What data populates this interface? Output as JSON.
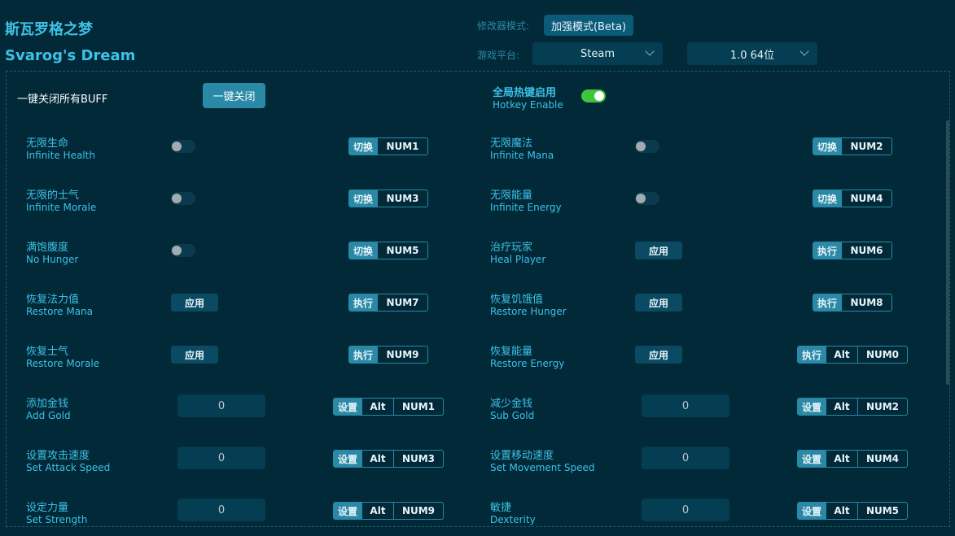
{
  "title_cn": "斯瓦罗格之梦",
  "title_en": "Svarog's Dream",
  "mode": {
    "label": "修改器模式:",
    "value": "加强模式(Beta)"
  },
  "platform": {
    "label": "游戏平台:",
    "value": "Steam",
    "version": "1.0 64位"
  },
  "close_all": {
    "label": "一键关闭所有BUFF",
    "button": "一键关闭"
  },
  "hotkey_enable": {
    "cn": "全局热键启用",
    "en": "Hotkey Enable",
    "on": true
  },
  "colors": {
    "bg": "#012938",
    "accent": "#3ec1e6",
    "button": "#2a89a6",
    "toggle_on": "#3fc43f"
  },
  "items": [
    {
      "cn": "无限生命",
      "en": "Infinite Health",
      "type": "toggle",
      "on": false,
      "action": "切换",
      "keys": [
        "NUM1"
      ]
    },
    {
      "cn": "无限魔法",
      "en": "Infinite Mana",
      "type": "toggle",
      "on": false,
      "action": "切换",
      "keys": [
        "NUM2"
      ]
    },
    {
      "cn": "无限的士气",
      "en": "Infinite Morale",
      "type": "toggle",
      "on": false,
      "action": "切换",
      "keys": [
        "NUM3"
      ]
    },
    {
      "cn": "无限能量",
      "en": "Infinite Energy",
      "type": "toggle",
      "on": false,
      "action": "切换",
      "keys": [
        "NUM4"
      ]
    },
    {
      "cn": "满饱腹度",
      "en": "No Hunger",
      "type": "toggle",
      "on": false,
      "action": "切换",
      "keys": [
        "NUM5"
      ]
    },
    {
      "cn": "治疗玩家",
      "en": "Heal Player",
      "type": "apply",
      "button": "应用",
      "action": "执行",
      "keys": [
        "NUM6"
      ]
    },
    {
      "cn": "恢复法力值",
      "en": "Restore Mana",
      "type": "apply",
      "button": "应用",
      "action": "执行",
      "keys": [
        "NUM7"
      ]
    },
    {
      "cn": "恢复饥饿值",
      "en": "Restore Hunger",
      "type": "apply",
      "button": "应用",
      "action": "执行",
      "keys": [
        "NUM8"
      ]
    },
    {
      "cn": "恢复士气",
      "en": "Restore Morale",
      "type": "apply",
      "button": "应用",
      "action": "执行",
      "keys": [
        "NUM9"
      ]
    },
    {
      "cn": "恢复能量",
      "en": "Restore Energy",
      "type": "apply",
      "button": "应用",
      "action": "执行",
      "keys": [
        "Alt",
        "NUM0"
      ]
    },
    {
      "cn": "添加金钱",
      "en": "Add Gold",
      "type": "input",
      "value": "0",
      "action": "设置",
      "keys": [
        "Alt",
        "NUM1"
      ]
    },
    {
      "cn": "减少金钱",
      "en": "Sub Gold",
      "type": "input",
      "value": "0",
      "action": "设置",
      "keys": [
        "Alt",
        "NUM2"
      ]
    },
    {
      "cn": "设置攻击速度",
      "en": "Set Attack Speed",
      "type": "input",
      "value": "0",
      "action": "设置",
      "keys": [
        "Alt",
        "NUM3"
      ]
    },
    {
      "cn": "设置移动速度",
      "en": "Set Movement Speed",
      "type": "input",
      "value": "0",
      "action": "设置",
      "keys": [
        "Alt",
        "NUM4"
      ]
    },
    {
      "cn": "设定力量",
      "en": "Set Strength",
      "type": "input",
      "value": "0",
      "action": "设置",
      "keys": [
        "Alt",
        "NUM9"
      ]
    },
    {
      "cn": "敏捷",
      "en": "Dexterity",
      "type": "input",
      "value": "0",
      "action": "设置",
      "keys": [
        "Alt",
        "NUM5"
      ]
    }
  ]
}
